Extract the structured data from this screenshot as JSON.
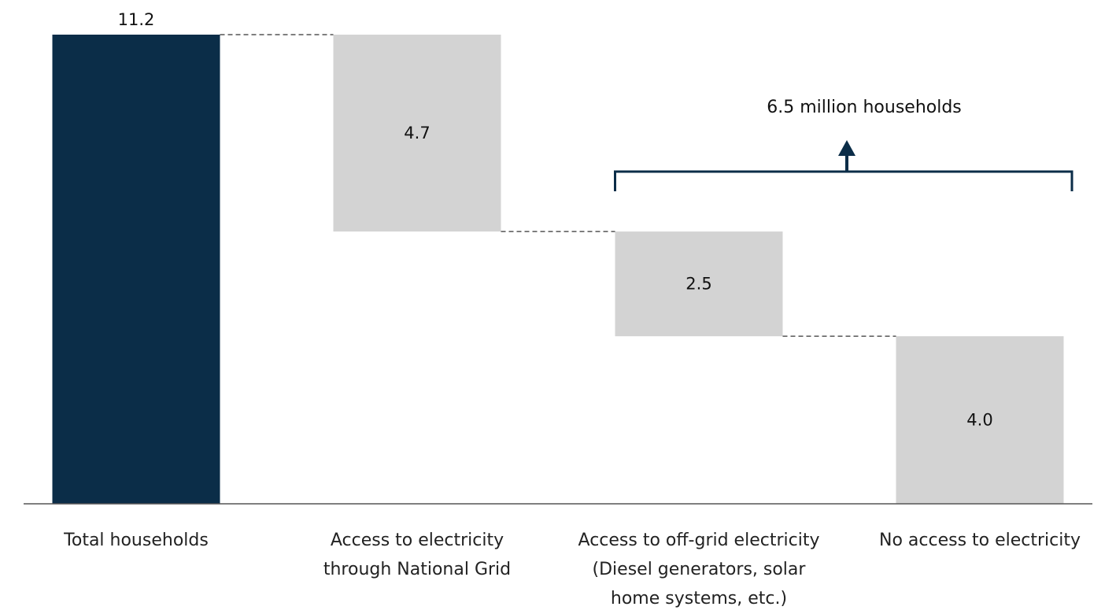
{
  "chart_data": {
    "type": "bar",
    "subtype": "waterfall",
    "title": "",
    "xlabel": "",
    "ylabel": "",
    "ylim": [
      0,
      11.2
    ],
    "grid": false,
    "legend": "none",
    "categories": [
      [
        "Total households"
      ],
      [
        "Access to electricity",
        "through National Grid"
      ],
      [
        "Access to off-grid electricity",
        "(Diesel generators, solar",
        "home systems, etc.)"
      ],
      [
        "No access to electricity"
      ]
    ],
    "bars": [
      {
        "kind": "total",
        "value": 11.2,
        "start": 0,
        "end": 11.2,
        "label": "11.2",
        "color": "#0b2d48"
      },
      {
        "kind": "decrease",
        "value": 4.7,
        "start": 6.5,
        "end": 11.2,
        "label": "4.7",
        "color": "#d3d3d3"
      },
      {
        "kind": "decrease",
        "value": 2.5,
        "start": 4.0,
        "end": 6.5,
        "label": "2.5",
        "color": "#d3d3d3"
      },
      {
        "kind": "decrease",
        "value": 4.0,
        "start": 0,
        "end": 4.0,
        "label": "4.0",
        "color": "#d3d3d3"
      }
    ],
    "annotation": {
      "text": "6.5 million households",
      "spans": [
        2,
        3
      ],
      "color": "#0b2d48"
    },
    "colors": {
      "axis": "#555555",
      "connector": "#555555",
      "text": "#222222"
    }
  }
}
